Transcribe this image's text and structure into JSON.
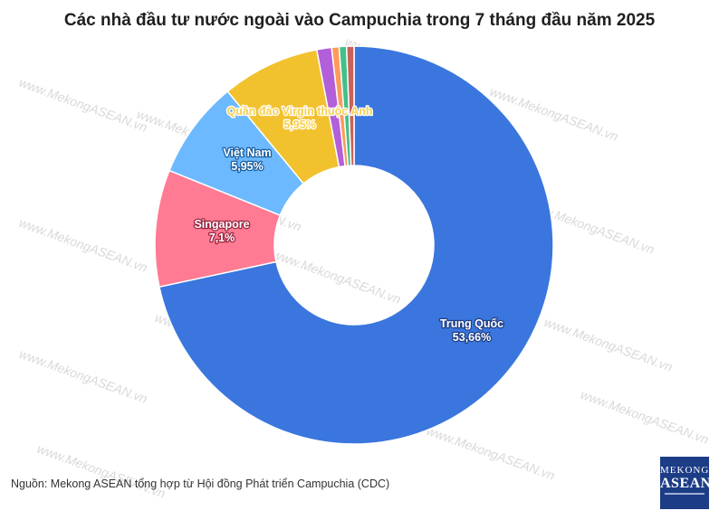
{
  "title": "Các nhà đầu tư nước ngoài vào Campuchia trong 7 tháng đầu năm 2025",
  "source": "Nguồn: Mekong ASEAN tổng hợp từ Hội đồng Phát triển Campuchia (CDC)",
  "logo": {
    "line1": "MEKONG",
    "line2": "ASEAN"
  },
  "watermark": "www.MekongASEAN.vn",
  "chart_data": {
    "type": "pie",
    "donut": true,
    "title": "Các nhà đầu tư nước ngoài vào Campuchia trong 7 tháng đầu năm 2025",
    "slices": [
      {
        "label": "Trung Quốc",
        "value_label": "53,66%",
        "value": 53.66,
        "color": "#3a76de",
        "text_color": "#ffffff",
        "halo": "#1f3f86"
      },
      {
        "label": "Singapore",
        "value_label": "7,1%",
        "value": 7.1,
        "color": "#ff7a93",
        "text_color": "#ffffff",
        "halo": "#9a2540"
      },
      {
        "label": "Việt Nam",
        "value_label": "5,95%",
        "value": 5.95,
        "color": "#6cb9ff",
        "text_color": "#ffffff",
        "halo": "#1b5fa0"
      },
      {
        "label": "Quần đảo Virgin thuộc Anh",
        "value_label": "5,95%",
        "value": 5.95,
        "color": "#f2c12e",
        "text_color": "#f6d052",
        "halo": "#ffffff"
      },
      {
        "label": "",
        "value_label": "",
        "value": 0.9,
        "color": "#b25fd9"
      },
      {
        "label": "",
        "value_label": "",
        "value": 0.45,
        "color": "#ff9a5c"
      },
      {
        "label": "",
        "value_label": "",
        "value": 0.45,
        "color": "#43c08a"
      },
      {
        "label": "",
        "value_label": "",
        "value": 0.45,
        "color": "#c8625c"
      }
    ]
  }
}
